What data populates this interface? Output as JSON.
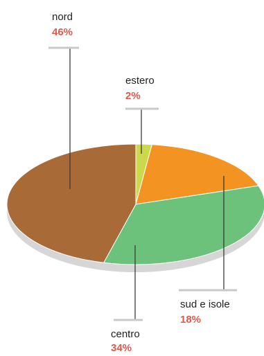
{
  "chart_data": {
    "type": "pie",
    "categories": [
      "nord",
      "estero",
      "sud e isole",
      "centro"
    ],
    "values": [
      46,
      2,
      18,
      34
    ],
    "labels": [
      "46%",
      "2%",
      "18%",
      "34%"
    ],
    "colors": [
      "#a86a36",
      "#ccd94a",
      "#f39422",
      "#6cc27a"
    ],
    "style": "3d-tilted",
    "shadow_color": "#d6d6d6",
    "leader_color": "#3a3a3a",
    "tick_color": "#c8c8c8",
    "percent_color": "#e2574c",
    "title": "",
    "legend": "none"
  }
}
